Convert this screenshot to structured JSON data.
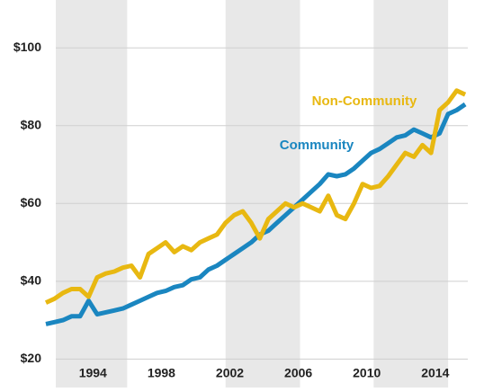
{
  "chart_data": {
    "type": "line",
    "x": [
      1991.25,
      1991.75,
      1992.25,
      1992.75,
      1993.25,
      1993.75,
      1994.25,
      1994.75,
      1995.25,
      1995.75,
      1996.25,
      1996.75,
      1997.25,
      1997.75,
      1998.25,
      1998.75,
      1999.25,
      1999.75,
      2000.25,
      2000.75,
      2001.25,
      2001.75,
      2002.25,
      2002.75,
      2003.25,
      2003.75,
      2004.25,
      2004.75,
      2005.25,
      2005.75,
      2006.25,
      2006.75,
      2007.25,
      2007.75,
      2008.25,
      2008.75,
      2009.25,
      2009.75,
      2010.25,
      2010.75,
      2011.25,
      2011.75,
      2012.25,
      2012.75,
      2013.25,
      2013.75,
      2014.25,
      2014.75,
      2015.25,
      2015.75
    ],
    "series": [
      {
        "name": "Community",
        "color": "#1a86c0",
        "values": [
          29,
          29.5,
          30,
          31,
          31,
          35,
          31.5,
          32,
          32.5,
          33,
          34,
          35,
          36,
          37,
          37.5,
          38.5,
          39,
          40.5,
          41,
          43,
          44,
          45.5,
          47,
          48.5,
          50,
          52,
          53,
          55,
          57,
          59,
          61,
          63,
          65,
          67.5,
          67,
          67.5,
          69,
          71,
          73,
          74,
          75.5,
          77,
          77.5,
          79,
          78,
          77,
          78,
          83,
          84,
          85.5
        ]
      },
      {
        "name": "Non-Community",
        "color": "#e8b811",
        "values": [
          34.5,
          35.5,
          37,
          38,
          38,
          36,
          41,
          42,
          42.5,
          43.5,
          44,
          41,
          47,
          48.5,
          50,
          47.5,
          49,
          48,
          50,
          51,
          52,
          55,
          57,
          58,
          55,
          51,
          56,
          58,
          60,
          59,
          60,
          59,
          58,
          62,
          57,
          56,
          60,
          65,
          64,
          64.5,
          67,
          70,
          73,
          72,
          75,
          73,
          84,
          86,
          89,
          88
        ]
      }
    ],
    "xlim": [
      1991.2,
      2015.9
    ],
    "xticks": [
      1994,
      1998,
      2002,
      2006,
      2010,
      2014
    ],
    "ylim": [
      18,
      110
    ],
    "yticks": [
      {
        "value": 20,
        "label": "$20"
      },
      {
        "value": 40,
        "label": "$40"
      },
      {
        "value": 60,
        "label": "$60"
      },
      {
        "value": 80,
        "label": "$80"
      },
      {
        "value": 100,
        "label": "$100"
      }
    ],
    "shaded_ranges": [
      [
        1991.6,
        1996
      ],
      [
        2001.75,
        2006.1
      ],
      [
        2010.4,
        2014.75
      ]
    ],
    "grid": true
  }
}
